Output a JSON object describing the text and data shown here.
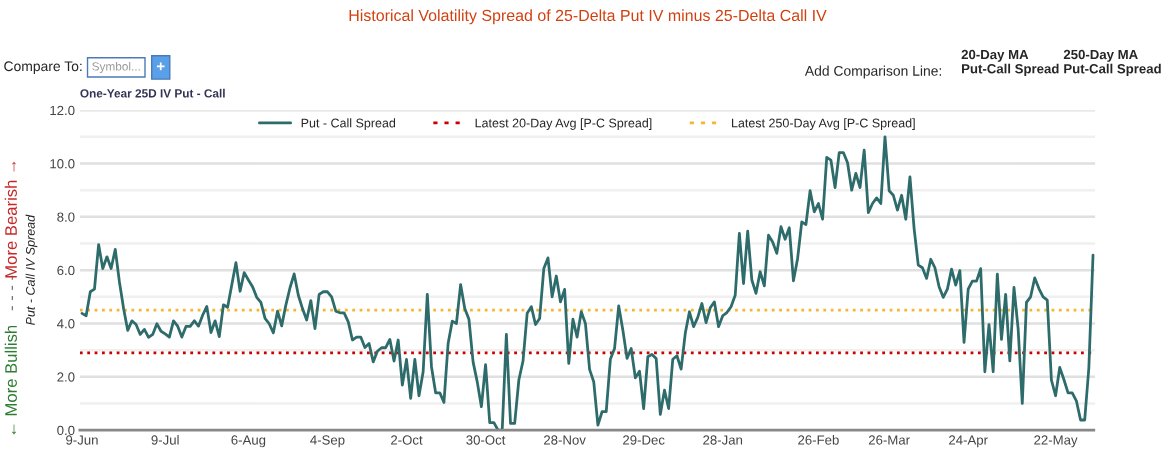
{
  "chart_data": {
    "type": "line",
    "title": "Historical Volatility Spread of 25-Delta Put IV minus 25-Delta Call IV",
    "subtitle": "One-Year 25D IV Put - Call",
    "ylabel": "Put - Call IV Spread",
    "annotations": [
      "← More Bullish",
      "- - - -",
      "More Bearish →",
      "Compare To:",
      "Symbol...",
      "+",
      "Add Comparison Line:",
      "20-Day MA\nPut-Call Spread",
      "250-Day MA\nPut-Call Spread"
    ],
    "categories": [
      "9-Jun",
      null,
      null,
      null,
      null,
      null,
      null,
      null,
      null,
      null,
      null,
      null,
      null,
      null,
      null,
      null,
      null,
      null,
      null,
      null,
      "9-Jul",
      null,
      null,
      null,
      null,
      null,
      null,
      null,
      null,
      null,
      null,
      null,
      null,
      null,
      null,
      null,
      null,
      null,
      null,
      null,
      "6-Aug",
      null,
      null,
      null,
      null,
      null,
      null,
      null,
      null,
      null,
      null,
      null,
      null,
      null,
      null,
      null,
      null,
      null,
      null,
      "4-Sep",
      null,
      null,
      null,
      null,
      null,
      null,
      null,
      null,
      null,
      null,
      null,
      null,
      null,
      null,
      null,
      null,
      null,
      null,
      "2-Oct",
      null,
      null,
      null,
      null,
      null,
      null,
      null,
      null,
      null,
      null,
      null,
      null,
      null,
      null,
      null,
      null,
      null,
      null,
      "30-Oct",
      null,
      null,
      null,
      null,
      null,
      null,
      null,
      null,
      null,
      null,
      null,
      null,
      null,
      null,
      null,
      null,
      null,
      null,
      "28-Nov",
      null,
      null,
      null,
      null,
      null,
      null,
      null,
      null,
      null,
      null,
      null,
      null,
      null,
      null,
      null,
      null,
      null,
      null,
      "29-Dec",
      null,
      null,
      null,
      null,
      null,
      null,
      null,
      null,
      null,
      null,
      null,
      null,
      null,
      null,
      null,
      null,
      null,
      null,
      "28-Jan",
      null,
      null,
      null,
      null,
      null,
      null,
      null,
      null,
      null,
      null,
      null,
      null,
      null,
      null,
      null,
      null,
      null,
      null,
      null,
      null,
      null,
      null,
      "26-Feb",
      null,
      null,
      null,
      null,
      null,
      null,
      null,
      null,
      null,
      null,
      null,
      null,
      null,
      null,
      null,
      null,
      "26-Mar",
      null,
      null,
      null,
      null,
      null,
      null,
      null,
      null,
      null,
      null,
      null,
      null,
      null,
      null,
      null,
      null,
      null,
      null,
      "24-Apr",
      null,
      null,
      null,
      null,
      null,
      null,
      null,
      null,
      null,
      null,
      null,
      null,
      null,
      null,
      null,
      null,
      null,
      null,
      null,
      null,
      "22-May",
      null,
      null,
      null,
      null,
      null,
      null,
      null,
      null,
      null
    ],
    "series": [
      {
        "name": "Put - Call Spread",
        "color": "#2e6b6b",
        "values": [
          4.38,
          4.29,
          5.19,
          5.29,
          6.96,
          6.06,
          6.5,
          6.06,
          6.78,
          5.56,
          4.56,
          3.74,
          4.1,
          3.96,
          3.59,
          3.78,
          3.48,
          3.59,
          3.99,
          3.71,
          3.61,
          3.49,
          4.1,
          3.9,
          3.49,
          3.89,
          3.89,
          4.1,
          3.9,
          4.31,
          4.64,
          3.66,
          4.1,
          3.51,
          4.7,
          4.61,
          5.44,
          6.28,
          5.21,
          5.91,
          5.63,
          5.38,
          4.98,
          4.79,
          4.19,
          3.99,
          3.65,
          4.46,
          3.91,
          4.69,
          5.34,
          5.86,
          5.06,
          4.56,
          4.13,
          4.86,
          3.81,
          5.09,
          5.19,
          5.19,
          5.0,
          4.46,
          4.4,
          4.4,
          4.06,
          3.38,
          3.49,
          3.49,
          3.1,
          3.25,
          2.56,
          2.96,
          3.09,
          3.09,
          3.4,
          2.59,
          3.38,
          1.69,
          2.65,
          1.19,
          2.65,
          1.29,
          2.19,
          5.09,
          2.38,
          1.4,
          1.4,
          1.04,
          3.25,
          4.09,
          4.0,
          5.46,
          4.56,
          4.16,
          2.56,
          1.81,
          0.88,
          2.46,
          0.28,
          0.28,
          0,
          0,
          3.59,
          0.25,
          0.25,
          1.88,
          2.59,
          4.38,
          4.63,
          3.96,
          4.19,
          6.06,
          6.46,
          5.0,
          5.78,
          4.81,
          5.28,
          2.5,
          4.16,
          3.49,
          4.44,
          4.0,
          2.28,
          1.81,
          0.19,
          0.69,
          0.69,
          2.66,
          3.06,
          4.66,
          3.75,
          2.69,
          3.06,
          1.96,
          2.21,
          0.81,
          2.75,
          2.84,
          2.69,
          0.59,
          1.5,
          0.81,
          2.66,
          2.79,
          2.29,
          3.63,
          4.44,
          3.88,
          4.23,
          4.75,
          4.03,
          4.59,
          4.81,
          3.88,
          4.29,
          4.41,
          4.63,
          5.06,
          7.38,
          5.5,
          7.46,
          5.63,
          5.13,
          5.94,
          5.41,
          7.31,
          7.06,
          6.63,
          7.63,
          7.16,
          7.59,
          5.6,
          6.44,
          7.81,
          7.71,
          8.98,
          8.19,
          8.5,
          7.91,
          10.23,
          10.13,
          9.1,
          10.41,
          10.41,
          10.03,
          9.0,
          9.63,
          9.1,
          10.5,
          8.16,
          8.5,
          8.71,
          8.5,
          11.0,
          8.98,
          8.81,
          8.25,
          8.81,
          7.91,
          9.5,
          7.56,
          6.19,
          6.09,
          5.69,
          6.41,
          6.09,
          5.38,
          4.98,
          5.29,
          6.04,
          5.44,
          5.98,
          3.29,
          5.29,
          5.59,
          5.59,
          6.06,
          2.19,
          3.96,
          2.19,
          5.85,
          3.4,
          5.09,
          2.6,
          5.35,
          3.81,
          1.0,
          4.79,
          5.0,
          5.71,
          5.31,
          5.0,
          4.88,
          1.88,
          1.29,
          2.35,
          1.9,
          1.4,
          1.4,
          1.1,
          0.38,
          0.38,
          2.34,
          6.56
        ]
      }
    ],
    "ref_lines": [
      {
        "axis": "y",
        "value": 2.9,
        "label": "Latest 20-Day Avg [P-C Spread]",
        "color": "#cc0000",
        "line_style": "dotted"
      },
      {
        "axis": "y",
        "value": 4.5,
        "label": "Latest 250-Day Avg [P-C Spread]",
        "color": "#f5b731",
        "line_style": "dotted"
      }
    ],
    "ylim": [
      0,
      12
    ],
    "yticks": [
      {
        "value": 0,
        "label": "0.0"
      },
      {
        "value": 1,
        "label": null
      },
      {
        "value": 2,
        "label": "2.0"
      },
      {
        "value": 3,
        "label": null
      },
      {
        "value": 4,
        "label": "4.0"
      },
      {
        "value": 5,
        "label": null
      },
      {
        "value": 6,
        "label": "6.0"
      },
      {
        "value": 7,
        "label": null
      },
      {
        "value": 8,
        "label": "8.0"
      },
      {
        "value": 9,
        "label": null
      },
      {
        "value": 10,
        "label": "10.0"
      },
      {
        "value": 11,
        "label": null
      },
      {
        "value": 12,
        "label": "12.0"
      }
    ],
    "grid": "y",
    "legend": "top",
    "marker": "none",
    "line_style": "solid"
  }
}
